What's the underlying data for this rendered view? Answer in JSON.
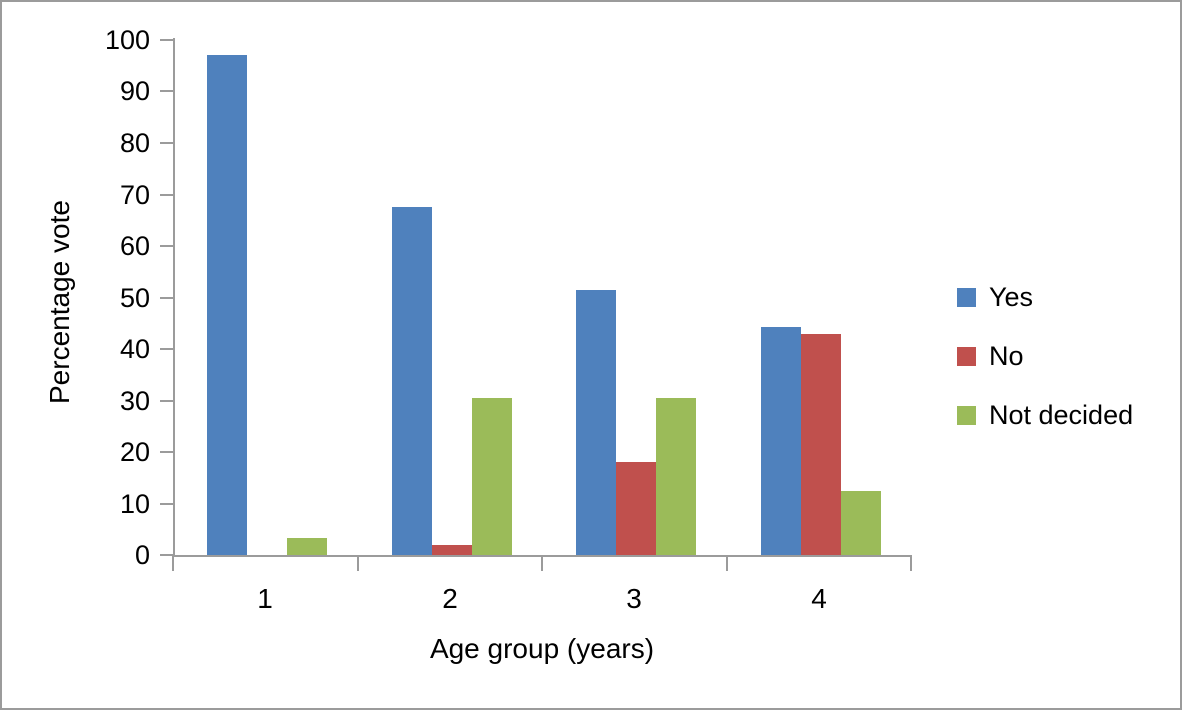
{
  "chart_data": {
    "type": "bar",
    "title": "",
    "xlabel": "Age group (years)",
    "ylabel": "Percentage vote",
    "categories": [
      "1",
      "2",
      "3",
      "4"
    ],
    "series": [
      {
        "name": "Yes",
        "color": "#4F81BD",
        "values": [
          97,
          67.5,
          51.5,
          44.3
        ]
      },
      {
        "name": "No",
        "color": "#C0504D",
        "values": [
          0,
          2,
          18,
          43
        ]
      },
      {
        "name": "Not decided",
        "color": "#9BBB59",
        "values": [
          3.3,
          30.4,
          30.4,
          12.5
        ]
      }
    ],
    "ylim": [
      0,
      100
    ],
    "ytick_step": 10,
    "grid": false,
    "legend_position": "right",
    "axis_color": "#9b9b9b",
    "text_color": "#000000",
    "background_color": "#ffffff"
  }
}
